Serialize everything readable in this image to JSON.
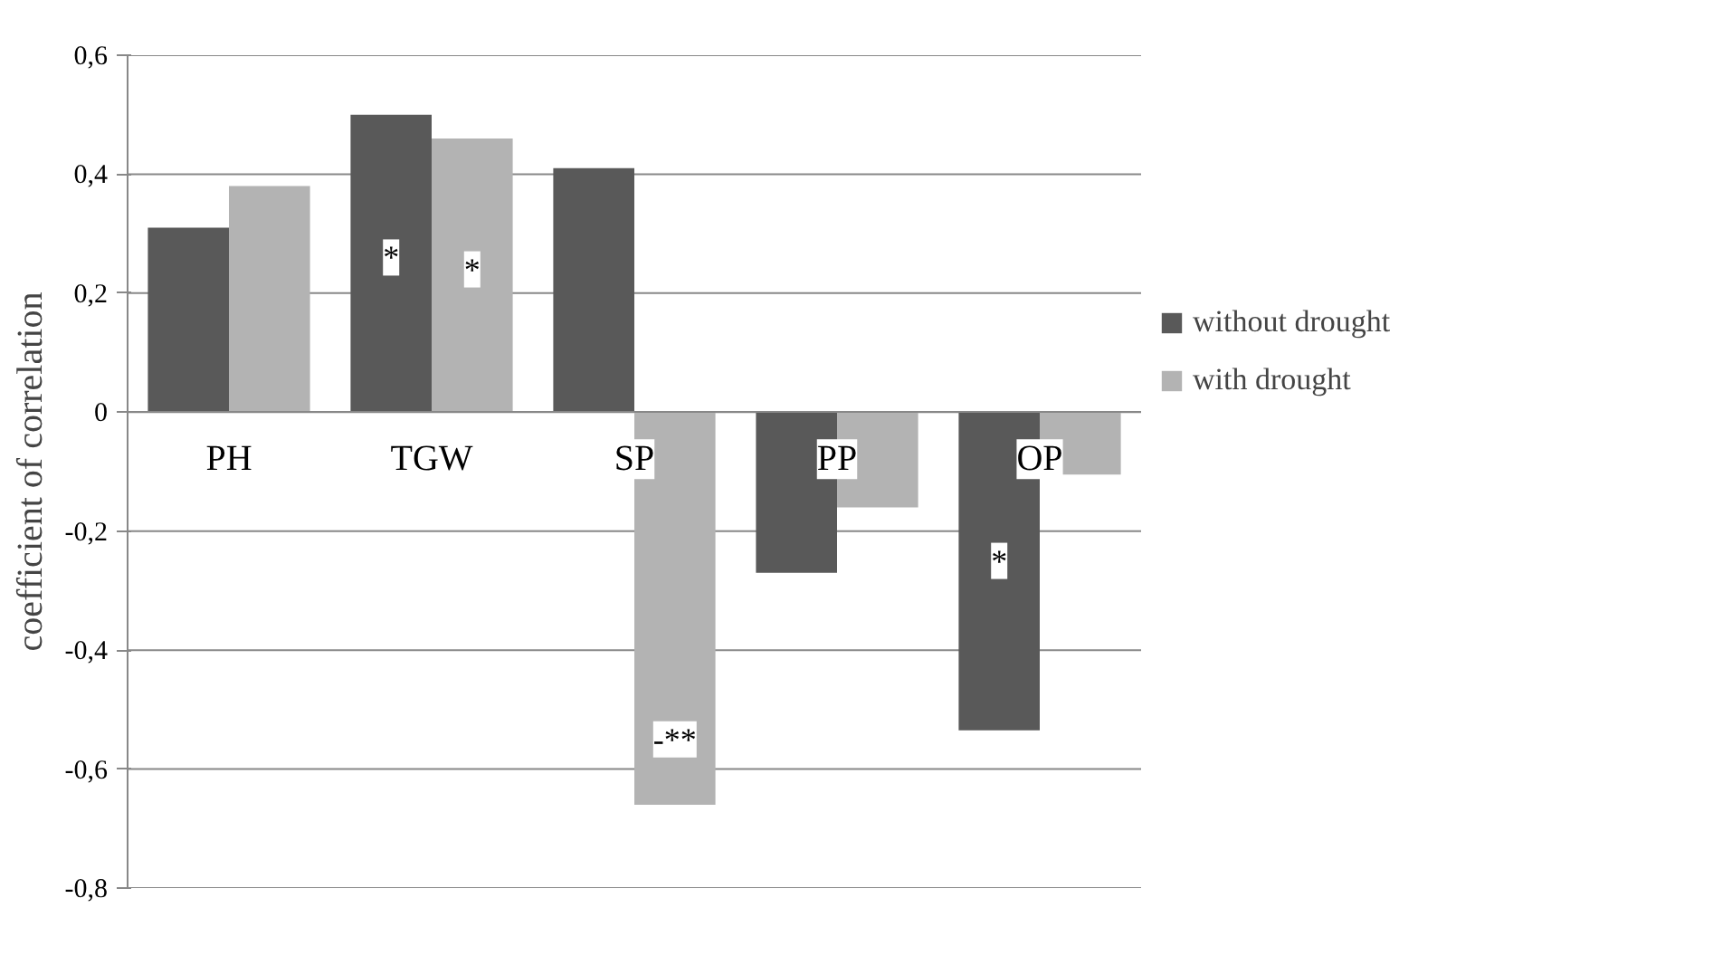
{
  "chart_data": {
    "type": "bar",
    "ylabel": "coefficient of correlation",
    "categories": [
      "PH",
      "TGW",
      "SP",
      "PP",
      "OP"
    ],
    "series": [
      {
        "name": "without drought",
        "color": "#595959",
        "values": [
          0.31,
          0.5,
          0.41,
          -0.27,
          -0.535
        ]
      },
      {
        "name": "with drought",
        "color": "#b3b3b3",
        "values": [
          0.38,
          0.46,
          -0.66,
          -0.16,
          -0.105
        ]
      }
    ],
    "ylim": [
      -0.8,
      0.6
    ],
    "yticks": [
      {
        "value": -0.8,
        "label": "-0,8"
      },
      {
        "value": -0.6,
        "label": "-0,6"
      },
      {
        "value": -0.4,
        "label": "-0,4"
      },
      {
        "value": -0.2,
        "label": "-0,2"
      },
      0,
      {
        "value": 0.2,
        "label": "0,2"
      },
      {
        "value": 0.4,
        "label": "0,4"
      },
      {
        "value": 0.6,
        "label": "0,6"
      }
    ],
    "grid": "y",
    "legend": "right",
    "annotations": [
      {
        "text": "*",
        "x": "TGW",
        "y": 0.26
      },
      {
        "text": "*",
        "x": "TGW",
        "y": 0.24
      },
      {
        "text": "-**",
        "x": "SP",
        "y": -0.55
      },
      {
        "text": "*",
        "x": "OP",
        "y": -0.25
      }
    ]
  }
}
